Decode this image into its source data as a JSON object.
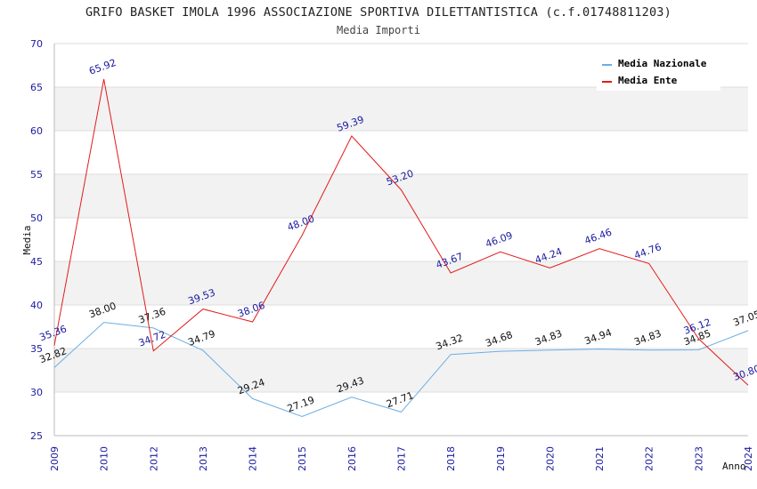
{
  "chart_data": {
    "type": "line",
    "title": "GRIFO BASKET IMOLA 1996 ASSOCIAZIONE SPORTIVA DILETTANTISTICA (c.f.01748811203)",
    "subtitle": "Media Importi",
    "xlabel": "Anno",
    "ylabel": "Media",
    "ylim": [
      25,
      70
    ],
    "yticks": [
      25,
      30,
      35,
      40,
      45,
      50,
      55,
      60,
      65,
      70
    ],
    "categories": [
      "2009",
      "2010",
      "2012",
      "2013",
      "2014",
      "2015",
      "2016",
      "2017",
      "2018",
      "2019",
      "2020",
      "2021",
      "2022",
      "2023",
      "2024"
    ],
    "series": [
      {
        "name": "Media Nazionale",
        "color": "#6aaee6",
        "values": [
          32.82,
          38.0,
          37.36,
          34.79,
          29.24,
          27.19,
          29.43,
          27.71,
          34.32,
          34.68,
          34.83,
          34.94,
          34.83,
          34.85,
          37.05
        ],
        "labels": [
          "32.82",
          "38.00",
          "37.36",
          "34.79",
          "29.24",
          "27.19",
          "29.43",
          "27.71",
          "34.32",
          "34.68",
          "34.83",
          "34.94",
          "34.83",
          "34.85",
          "37.05"
        ]
      },
      {
        "name": "Media Ente",
        "color": "#e31b1b",
        "values": [
          35.36,
          65.92,
          34.72,
          39.53,
          38.06,
          48.0,
          59.39,
          53.2,
          43.67,
          46.09,
          44.24,
          46.46,
          44.76,
          36.12,
          30.8
        ],
        "labels": [
          "35.36",
          "65.92",
          "34.72",
          "39.53",
          "38.06",
          "48.00",
          "59.39",
          "53.20",
          "43.67",
          "46.09",
          "44.24",
          "46.46",
          "44.76",
          "36.12",
          "30.80"
        ]
      }
    ],
    "legend": "top-right",
    "grid": true
  }
}
